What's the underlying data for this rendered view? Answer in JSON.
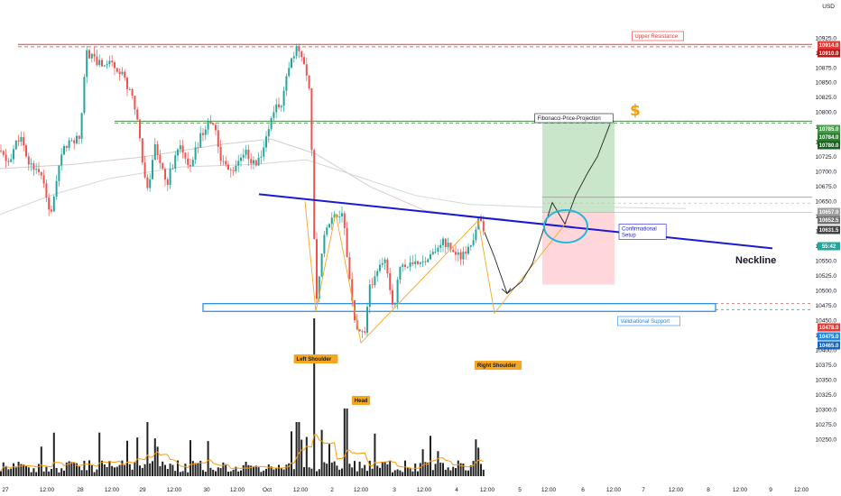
{
  "chart_data": {
    "type": "candlestick",
    "currency_label": "USD",
    "y_tick_labels": [
      10925.0,
      10900.0,
      10875.0,
      10850.0,
      10825.0,
      10800.0,
      10775.0,
      10750.0,
      10725.0,
      10700.0,
      10675.0,
      10650.0,
      10625.0,
      10600.0,
      10575.0,
      10550.0,
      10525.0,
      10500.0,
      10475.0,
      10450.0,
      10425.0,
      10400.0,
      10375.0,
      10350.0,
      10325.0,
      10300.0,
      10275.0,
      10250.0
    ],
    "ylim": [
      10245,
      10955
    ],
    "x_tick_labels": [
      "27",
      "12:00",
      "28",
      "12:00",
      "29",
      "12:00",
      "30",
      "12:00",
      "Oct",
      "12:00",
      "2",
      "12:00",
      "3",
      "12:00",
      "4",
      "12:00",
      "5",
      "12:00",
      "6",
      "12:00",
      "7",
      "12:00",
      "8",
      "12:00",
      "9",
      "12:00"
    ],
    "price_tags": [
      {
        "value": "10914.0",
        "color": "#e53935"
      },
      {
        "value": "10910.0",
        "color": "#b71c1c"
      },
      {
        "value": "10785.0",
        "color": "#43a047"
      },
      {
        "value": "10784.0",
        "color": "#2e7d32"
      },
      {
        "value": "10780.0",
        "color": "#1b5e20"
      },
      {
        "value": "10657.0",
        "color": "#9e9e9e"
      },
      {
        "value": "10652.5",
        "color": "#757575"
      },
      {
        "value": "10640.0",
        "color": "#616161"
      },
      {
        "value": "10631.5",
        "color": "#424242"
      },
      {
        "value": "55:42",
        "color": "#26a69a"
      },
      {
        "value": "10478.0",
        "color": "#e53935"
      },
      {
        "value": "10475.0",
        "color": "#1e88e5"
      },
      {
        "value": "10465.0",
        "color": "#1565c0"
      }
    ],
    "levels": {
      "upper_resistance": 10912,
      "fib_projection": 10784,
      "grey_top": 10657,
      "grey_mid": 10647,
      "validational_support_top": 10478,
      "validational_support_bottom": 10465
    },
    "annotations": {
      "upper_resistance": "Upper Resistance",
      "fib_projection": "Fibonacci-Price-Projection",
      "confirmational": "Confirmational\nSetup",
      "validational_support": "Validiational Support",
      "neckline": "Neckline",
      "left_shoulder": "Left Shoulder",
      "head": "Head",
      "right_shoulder": "Right Shoulder",
      "dollar": "$"
    },
    "colors": {
      "up": "#26a69a",
      "down": "#ef5350",
      "neckline": "#1a1ad4",
      "pattern": "#f5a623",
      "tp_zone": "#a5d6a7",
      "sl_zone": "#ffcdd2",
      "support_box": "#1e88e5",
      "circle": "#29b6d6",
      "volume": "#222222",
      "volume_ma": "#ff9800"
    }
  }
}
